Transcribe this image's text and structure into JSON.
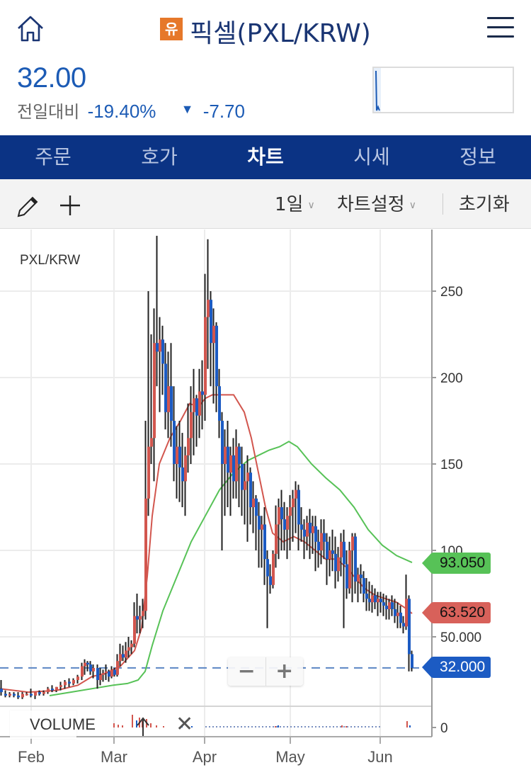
{
  "header": {
    "title": "픽셀(PXL/KRW)",
    "badge": "유",
    "home_icon": "home-icon",
    "menu_icon": "hamburger-menu-icon"
  },
  "quote": {
    "price": "32.00",
    "change_label": "전일대비",
    "change_pct": "-19.40%",
    "change_direction": "down",
    "change_abs": "-7.70",
    "color_down": "#1c5bb5"
  },
  "tabs": [
    {
      "label": "주문",
      "active": false
    },
    {
      "label": "호가",
      "active": false
    },
    {
      "label": "차트",
      "active": true
    },
    {
      "label": "시세",
      "active": false
    },
    {
      "label": "정보",
      "active": false
    }
  ],
  "toolbar": {
    "draw_icon": "pencil-icon",
    "add_icon": "plus-icon",
    "interval": "1일",
    "settings": "차트설정",
    "reset": "초기화"
  },
  "chart_controls": {
    "zoom_out": "−",
    "zoom_in": "+",
    "volume_label": "VOLUME",
    "volume_close": "✕"
  },
  "chart_data": {
    "type": "candlestick",
    "title": "PXL/KRW",
    "x_ticks": [
      "Feb",
      "Mar",
      "Apr",
      "May",
      "Jun"
    ],
    "y_ticks": [
      "250",
      "200",
      "150",
      "100",
      "50.000"
    ],
    "volume_ticks": [
      "0"
    ],
    "y_range": [
      0,
      280
    ],
    "colors": {
      "up": "#d2564e",
      "down": "#1c5bc3",
      "ma_short": "#d2564e",
      "ma_long": "#57c257",
      "wick": "#222222"
    },
    "price_markers": [
      {
        "label": "93.050",
        "series": "MA (long, green)",
        "color": "#57c257"
      },
      {
        "label": "63.520",
        "series": "MA (short, red)",
        "color": "#d2564e"
      },
      {
        "label": "32.000",
        "series": "Last price",
        "color": "#1c5bc3"
      }
    ],
    "last_price_line": 32.0,
    "approx_ohlc": [
      {
        "period": "late Jan",
        "open": 18,
        "high": 25,
        "low": 14,
        "close": 17
      },
      {
        "period": "early Feb",
        "open": 17,
        "high": 20,
        "low": 14,
        "close": 16
      },
      {
        "period": "mid Feb",
        "open": 18,
        "high": 28,
        "low": 16,
        "close": 25
      },
      {
        "period": "late Feb",
        "open": 34,
        "high": 38,
        "low": 22,
        "close": 30
      },
      {
        "period": "early Mar",
        "open": 28,
        "high": 65,
        "low": 26,
        "close": 55
      },
      {
        "period": "mid Mar",
        "open": 130,
        "high": 282,
        "low": 120,
        "close": 220
      },
      {
        "period": "late Mar",
        "open": 160,
        "high": 190,
        "low": 140,
        "close": 180
      },
      {
        "period": "early Apr",
        "open": 235,
        "high": 280,
        "low": 195,
        "close": 200
      },
      {
        "period": "mid Apr",
        "open": 150,
        "high": 165,
        "low": 100,
        "close": 135
      },
      {
        "period": "late Apr",
        "open": 95,
        "high": 120,
        "low": 55,
        "close": 85
      },
      {
        "period": "early May",
        "open": 110,
        "high": 140,
        "low": 90,
        "close": 135
      },
      {
        "period": "mid May",
        "open": 115,
        "high": 125,
        "low": 85,
        "close": 100
      },
      {
        "period": "late May",
        "open": 95,
        "high": 110,
        "low": 55,
        "close": 72
      },
      {
        "period": "early Jun",
        "open": 70,
        "high": 85,
        "low": 55,
        "close": 58
      },
      {
        "period": "mid Jun",
        "open": 72,
        "high": 86,
        "low": 30,
        "close": 32
      }
    ]
  }
}
